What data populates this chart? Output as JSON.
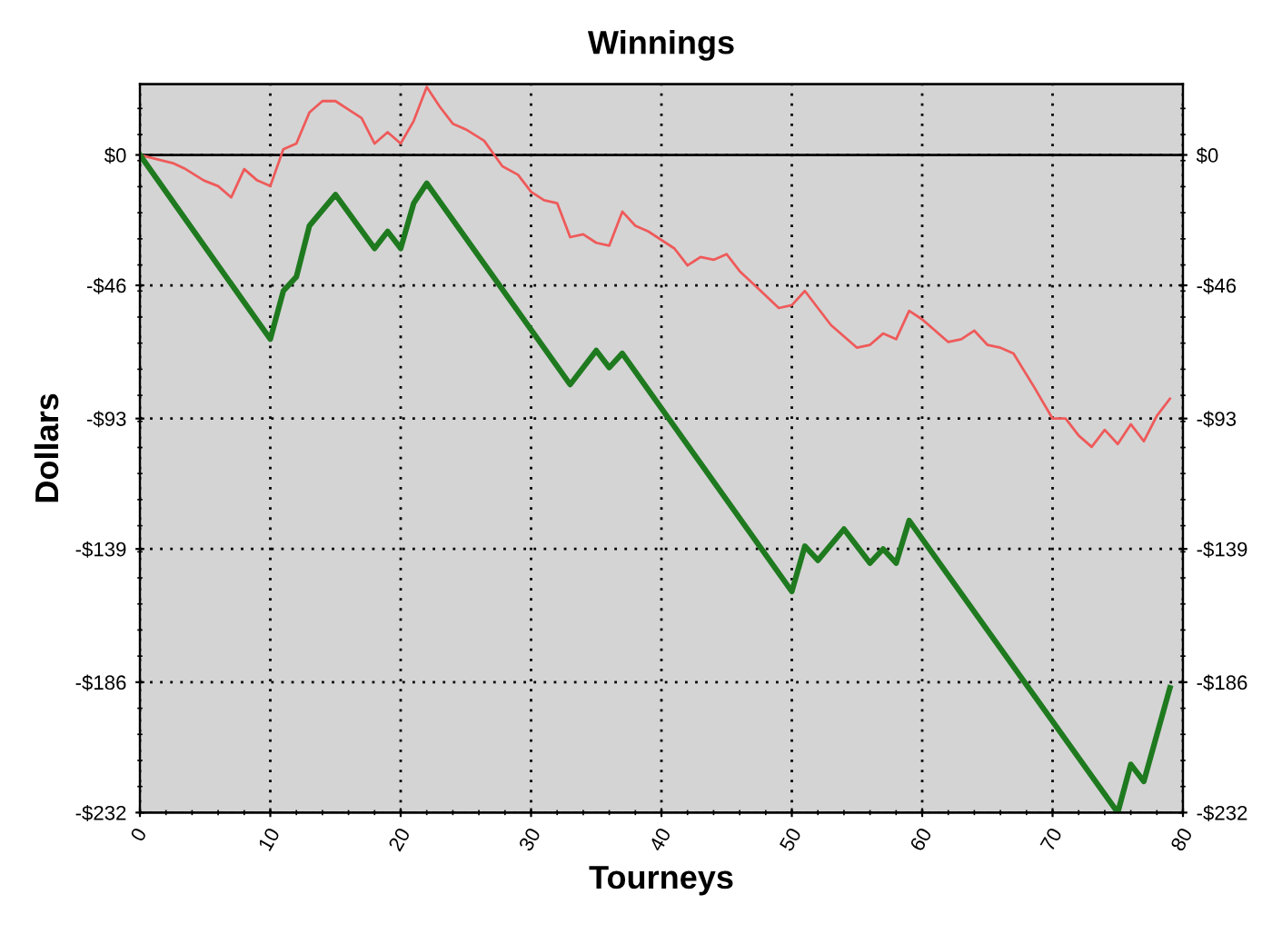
{
  "chart_data": {
    "type": "line",
    "title": "Winnings",
    "xlabel": "Tourneys",
    "ylabel": "Dollars",
    "xlim": [
      0,
      80
    ],
    "xticks": [
      0,
      10,
      20,
      30,
      40,
      50,
      60,
      70,
      80
    ],
    "ylim": [
      -232,
      25
    ],
    "yticks": [
      {
        "value": -232,
        "label": "-$232"
      },
      {
        "value": -186,
        "label": "-$186"
      },
      {
        "value": -139,
        "label": "-$139"
      },
      {
        "value": -93,
        "label": "-$93"
      },
      {
        "value": -46,
        "label": "-$46"
      },
      {
        "value": 0,
        "label": "$0"
      }
    ],
    "y2lim": [
      -232,
      25
    ],
    "y2ticks": [
      {
        "value": -232,
        "label": "-$232"
      },
      {
        "value": -186,
        "label": "-$186"
      },
      {
        "value": -139,
        "label": "-$139"
      },
      {
        "value": -93,
        "label": "-$93"
      },
      {
        "value": -46,
        "label": "-$46"
      },
      {
        "value": 0,
        "label": "$0"
      }
    ],
    "grid": true,
    "legend": false,
    "marker": "none",
    "line_style": "solid",
    "ref_lines": [
      {
        "axis": "y",
        "value": 0,
        "color": "#000000",
        "line_style": "solid"
      }
    ],
    "series": [
      {
        "color": "#ef5a5a",
        "x": [
          0,
          2.6,
          3.5,
          4.9,
          6,
          7,
          8,
          9,
          10,
          11,
          12,
          13,
          14,
          15,
          16,
          17,
          18,
          19,
          20,
          21,
          22,
          23,
          24,
          25,
          26.4,
          27.8,
          29,
          30,
          31,
          32,
          33,
          34,
          35,
          36,
          37,
          38,
          39,
          41,
          42,
          43,
          44,
          45,
          46,
          47.4,
          49,
          50,
          51,
          52,
          53,
          55,
          56,
          57,
          58,
          59,
          60,
          62,
          63,
          64,
          65,
          66,
          67,
          68.6,
          70,
          71,
          72,
          73,
          74,
          75,
          76,
          77,
          78,
          79
        ],
        "values": [
          0,
          -3,
          -5,
          -9,
          -11,
          -15,
          -5,
          -9,
          -11,
          2,
          4,
          15,
          19,
          19,
          16,
          13,
          4,
          8,
          4,
          12,
          24,
          17,
          11,
          9,
          5,
          -4,
          -7,
          -13,
          -16,
          -17,
          -29,
          -28,
          -31,
          -32,
          -20,
          -25,
          -27,
          -33,
          -39,
          -36,
          -37,
          -35,
          -41,
          -47,
          -54,
          -53,
          -48,
          -54,
          -60,
          -68,
          -67,
          -63,
          -65,
          -55,
          -58,
          -66,
          -65,
          -62,
          -67,
          -68,
          -70,
          -82,
          -93,
          -93,
          -99,
          -103,
          -97,
          -102,
          -95,
          -101,
          -92,
          -86
        ]
      },
      {
        "color": "#1f7a1f",
        "x": [
          0,
          10,
          11,
          12,
          13,
          15,
          18,
          19,
          20,
          21,
          22,
          33,
          35,
          36,
          37,
          50,
          51,
          52,
          54,
          56,
          57,
          58,
          59,
          75,
          76,
          77,
          79
        ],
        "values": [
          0,
          -65,
          -48,
          -43,
          -25,
          -14,
          -33,
          -27,
          -33,
          -17,
          -10,
          -81,
          -69,
          -75,
          -70,
          -154,
          -138,
          -143,
          -132,
          -144,
          -139,
          -144,
          -129,
          -232,
          -215,
          -221,
          -188
        ]
      }
    ]
  }
}
